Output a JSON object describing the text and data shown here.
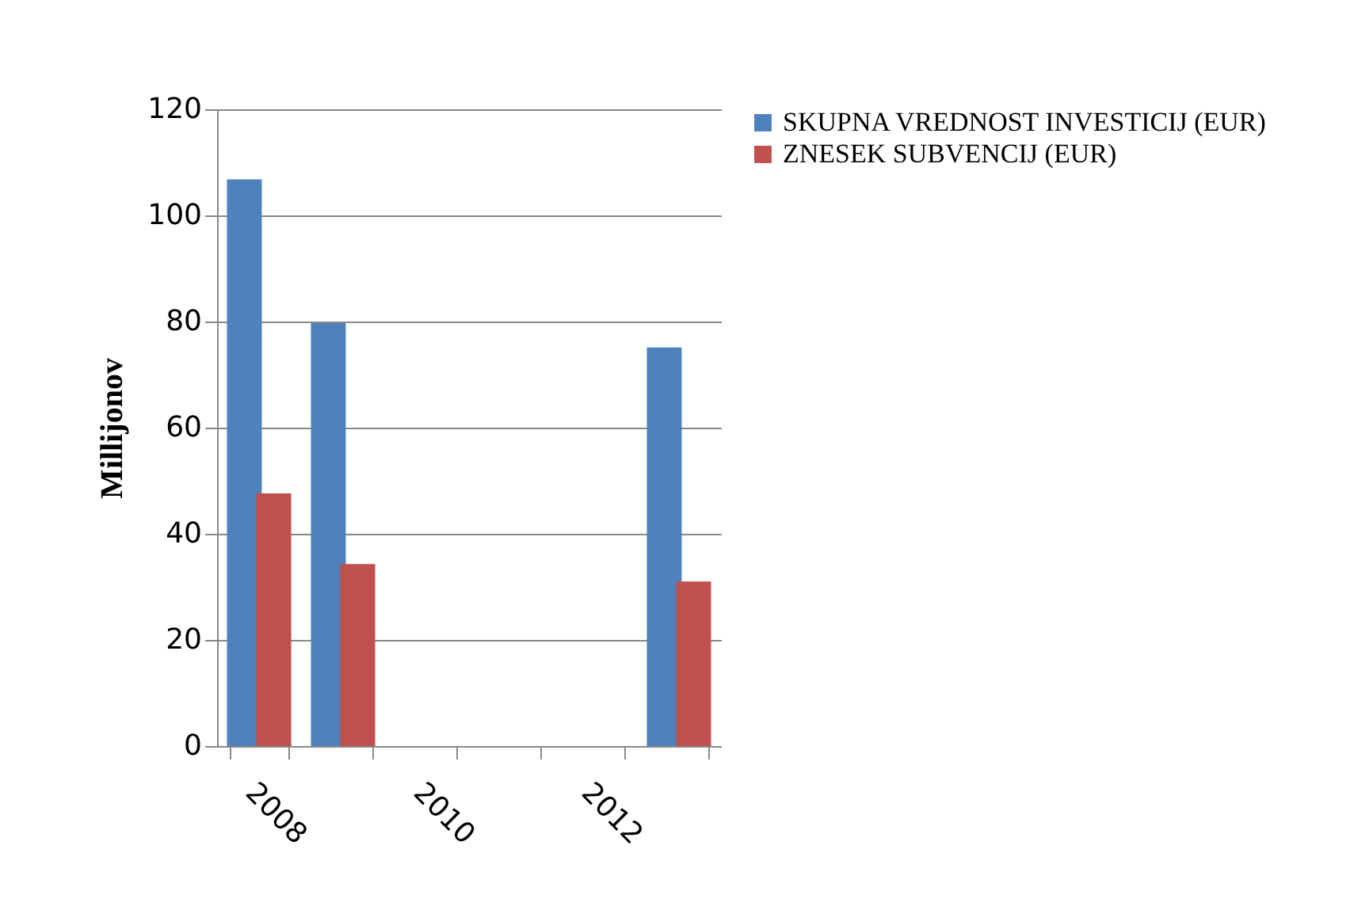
{
  "chart_data": {
    "type": "bar",
    "ylabel": "Millijonov",
    "categories": [
      "2008",
      null,
      "2010",
      null,
      "2012",
      null
    ],
    "series": [
      {
        "name": "SKUPNA VREDNOST INVESTICIJ (EUR)",
        "color": "#4f81bd",
        "values": [
          106.8,
          79.7,
          null,
          null,
          null,
          75.1
        ]
      },
      {
        "name": "ZNESEK SUBVENCIJ (EUR)",
        "color": "#c0504d",
        "values": [
          47.6,
          34.3,
          null,
          null,
          null,
          31.0
        ]
      }
    ],
    "ylim": [
      0,
      120
    ],
    "yticks": [
      0,
      20,
      40,
      60,
      80,
      100,
      120
    ],
    "grid": "y",
    "legend": "right"
  }
}
